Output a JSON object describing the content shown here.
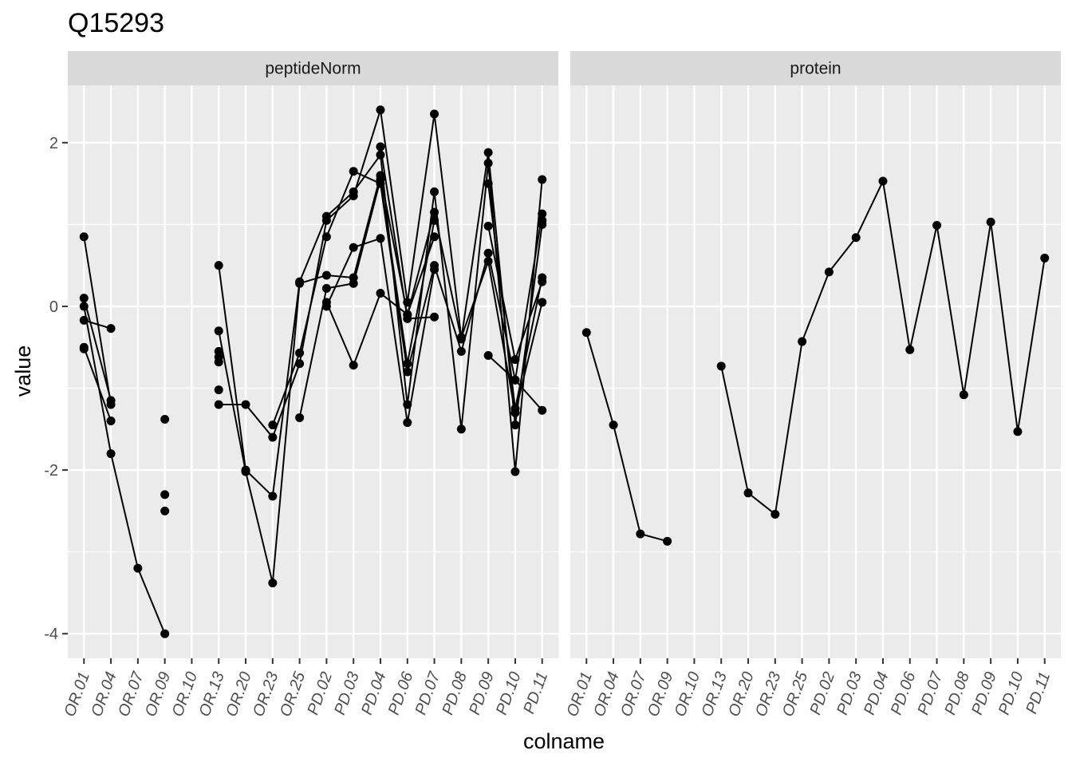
{
  "chart_data": {
    "type": "line",
    "title": "Q15293",
    "xlabel": "colname",
    "ylabel": "value",
    "ylim": [
      -4.3,
      2.7
    ],
    "yticks": [
      -4,
      -2,
      0,
      2
    ],
    "grid": true,
    "legend": "none",
    "colors": {
      "panel_bg": "#ebebeb",
      "strip_bg": "#d9d9d9",
      "grid": "#ffffff",
      "line": "#000000",
      "point": "#000000",
      "tick_text": "#4d4d4d",
      "tick_mark": "#333333"
    },
    "categories": [
      "OR.01",
      "OR.04",
      "OR.07",
      "OR.09",
      "OR.10",
      "OR.13",
      "OR.20",
      "OR.23",
      "OR.25",
      "PD.02",
      "PD.03",
      "PD.04",
      "PD.06",
      "PD.07",
      "PD.08",
      "PD.09",
      "PD.10",
      "PD.11"
    ],
    "facets": [
      {
        "name": "peptideNorm",
        "series": [
          {
            "values": [
              0.85,
              -1.2,
              null,
              null,
              null,
              0.5,
              -2.0,
              -2.32,
              0.3,
              1.1,
              1.4,
              1.85,
              -1.2,
              1.4,
              -1.5,
              1.75,
              -2.02,
              1.55
            ]
          },
          {
            "values": [
              0.1,
              -1.15,
              null,
              null,
              null,
              -1.2,
              -1.2,
              -1.6,
              -0.7,
              1.05,
              1.35,
              2.4,
              0.05,
              2.35,
              -0.38,
              0.55,
              -1.3,
              0.05
            ]
          },
          {
            "values": [
              0.0,
              -1.8,
              -3.2,
              -4.0,
              null,
              -0.3,
              -2.02,
              -3.38,
              0.28,
              0.38,
              0.35,
              1.6,
              -0.1,
              1.15,
              -0.4,
              1.88,
              -1.45,
              1.0
            ]
          },
          {
            "values": [
              -0.17,
              -0.27,
              null,
              -1.38,
              null,
              -0.55,
              null,
              -1.45,
              -0.57,
              0.85,
              1.65,
              1.5,
              -0.8,
              0.5,
              -0.55,
              0.65,
              -0.9,
              1.13
            ]
          },
          {
            "values": [
              -0.5,
              -1.4,
              null,
              -2.3,
              null,
              -0.62,
              null,
              null,
              -1.36,
              0.22,
              0.28,
              1.55,
              -0.7,
              1.05,
              null,
              1.5,
              -1.25,
              0.35
            ]
          },
          {
            "values": [
              -0.52,
              null,
              null,
              -2.5,
              null,
              -0.68,
              null,
              null,
              null,
              0.0,
              0.72,
              0.83,
              -1.42,
              0.45,
              null,
              0.98,
              -0.65,
              0.3
            ]
          },
          {
            "values": [
              null,
              null,
              null,
              null,
              null,
              -1.02,
              null,
              null,
              null,
              0.05,
              -0.72,
              0.16,
              -0.1,
              0.85,
              null,
              -0.6,
              -0.9,
              -1.27
            ]
          },
          {
            "values": [
              null,
              null,
              null,
              null,
              null,
              null,
              null,
              null,
              null,
              null,
              null,
              1.95,
              -0.15,
              -0.13,
              null,
              null,
              null,
              1.05
            ]
          }
        ]
      },
      {
        "name": "protein",
        "series": [
          {
            "values": [
              -0.32,
              -1.45,
              -2.78,
              -2.87,
              null,
              -0.73,
              -2.28,
              -2.54,
              -0.43,
              0.42,
              0.84,
              1.53,
              -0.53,
              0.99,
              -1.08,
              1.03,
              -1.53,
              0.59
            ]
          }
        ]
      }
    ]
  }
}
